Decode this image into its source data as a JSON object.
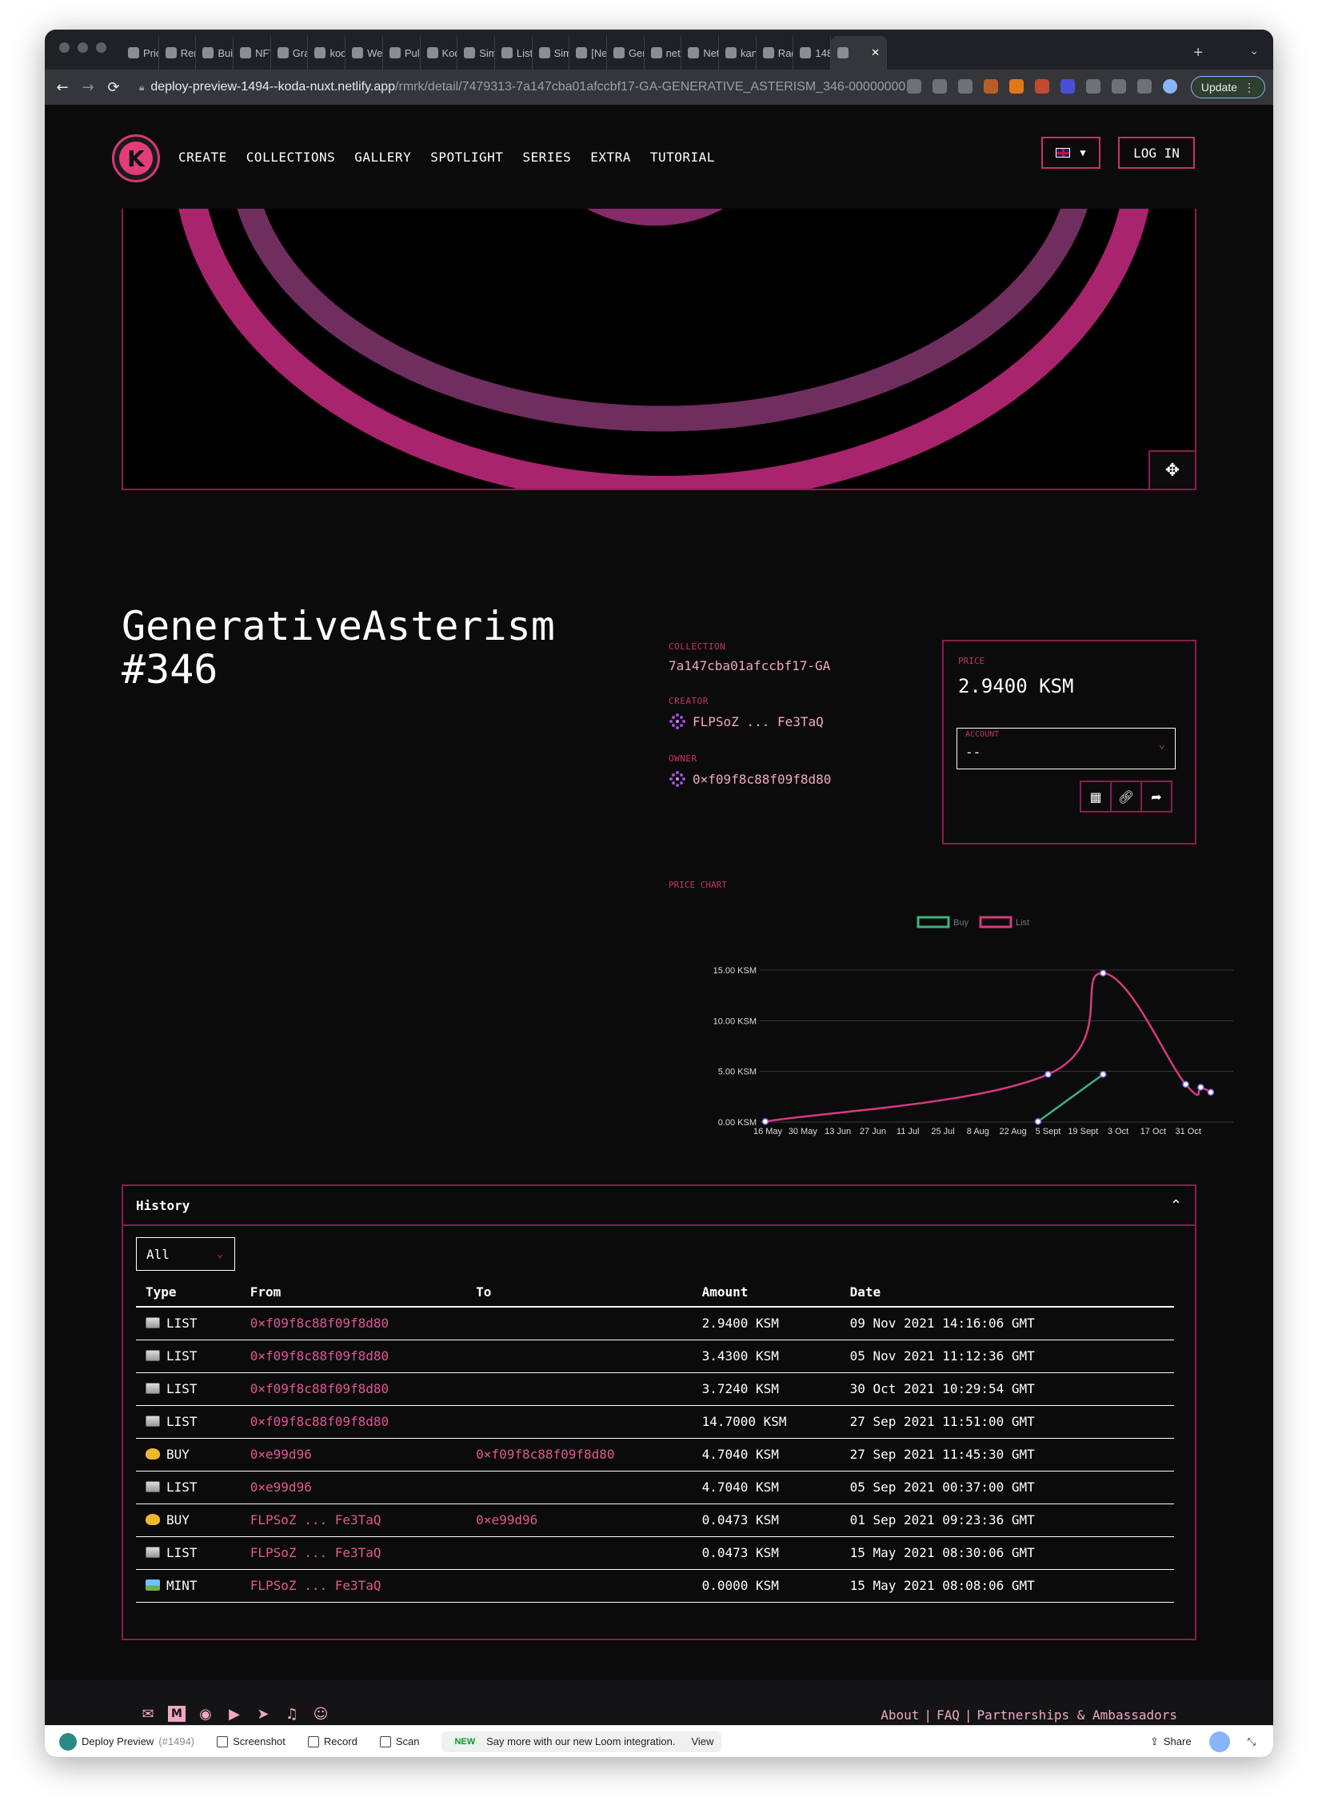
{
  "browser": {
    "tabs": [
      "Pric",
      "Rem",
      "Buil",
      "NFT",
      "Gra",
      "kod",
      "Wer",
      "Pull",
      "Kod",
      "Sim",
      "List",
      "Sim",
      "[Ne",
      "Gen",
      "netl",
      "Netl",
      "kan",
      "Rad",
      "148",
      ""
    ],
    "url_host": "deploy-preview-1494--koda-nuxt.netlify.app",
    "url_path": "/rmrk/detail/7479313-7a147cba01afccbf17-GA-GENERATIVE_ASTERISM_346-00000000...",
    "update_label": "Update",
    "new_tab_symbol": "+"
  },
  "nav": {
    "logo_letter": "K",
    "items": [
      "CREATE",
      "COLLECTIONS",
      "GALLERY",
      "SPOTLIGHT",
      "SERIES",
      "EXTRA",
      "TUTORIAL"
    ],
    "login_label": "LOG IN"
  },
  "nft": {
    "title_line1": "GenerativeAsterism",
    "title_line2": "#346",
    "collection_label": "COLLECTION",
    "collection": "7a147cba01afccbf17-GA",
    "creator_label": "CREATOR",
    "creator": "FLPSoZ ... Fe3TaQ",
    "owner_label": "OWNER",
    "owner": "0×f09f8c88f09f8d80"
  },
  "price": {
    "label": "PRICE",
    "value": "2.9400 KSM",
    "account_label": "ACCOUNT",
    "account_value": "--"
  },
  "chart_data": {
    "type": "line",
    "title": "PRICE CHART",
    "legend": [
      "Buy",
      "List"
    ],
    "legend_position": "top-center",
    "ylabel": "",
    "xlabel": "",
    "y_ticks": [
      "0.00 KSM",
      "5.00 KSM",
      "10.00 KSM",
      "15.00 KSM"
    ],
    "ylim": [
      0,
      15
    ],
    "x_ticks": [
      "16 May",
      "30 May",
      "13 Jun",
      "27 Jun",
      "11 Jul",
      "25 Jul",
      "8 Aug",
      "22 Aug",
      "5 Sept",
      "19 Sept",
      "3 Oct",
      "17 Oct",
      "31 Oct"
    ],
    "series": [
      {
        "name": "Buy",
        "color": "#3fb27f",
        "x": [
          "2021-09-01",
          "2021-09-27"
        ],
        "values": [
          0.0473,
          4.704
        ]
      },
      {
        "name": "List",
        "color": "#d63a80",
        "x": [
          "2021-05-15",
          "2021-09-05",
          "2021-09-27",
          "2021-10-30",
          "2021-11-05",
          "2021-11-09"
        ],
        "values": [
          0.0473,
          4.704,
          14.7,
          3.724,
          3.43,
          2.94
        ]
      }
    ],
    "grid": true
  },
  "history": {
    "title": "History",
    "filter": "All",
    "columns": [
      "Type",
      "From",
      "To",
      "Amount",
      "Date"
    ],
    "rows": [
      {
        "type": "LIST",
        "icon": "list",
        "from": "0×f09f8c88f09f8d80",
        "to": "",
        "amount": "2.9400 KSM",
        "date": "09 Nov 2021 14:16:06 GMT"
      },
      {
        "type": "LIST",
        "icon": "list",
        "from": "0×f09f8c88f09f8d80",
        "to": "",
        "amount": "3.4300 KSM",
        "date": "05 Nov 2021 11:12:36 GMT"
      },
      {
        "type": "LIST",
        "icon": "list",
        "from": "0×f09f8c88f09f8d80",
        "to": "",
        "amount": "3.7240 KSM",
        "date": "30 Oct 2021 10:29:54 GMT"
      },
      {
        "type": "LIST",
        "icon": "list",
        "from": "0×f09f8c88f09f8d80",
        "to": "",
        "amount": "14.7000 KSM",
        "date": "27 Sep 2021 11:51:00 GMT"
      },
      {
        "type": "BUY",
        "icon": "buy",
        "from": "0×e99d96",
        "to": "0×f09f8c88f09f8d80",
        "amount": "4.7040 KSM",
        "date": "27 Sep 2021 11:45:30 GMT"
      },
      {
        "type": "LIST",
        "icon": "list",
        "from": "0×e99d96",
        "to": "",
        "amount": "4.7040 KSM",
        "date": "05 Sep 2021 00:37:00 GMT"
      },
      {
        "type": "BUY",
        "icon": "buy",
        "from": "FLPSoZ ... Fe3TaQ",
        "to": "0×e99d96",
        "amount": "0.0473 KSM",
        "date": "01 Sep 2021 09:23:36 GMT"
      },
      {
        "type": "LIST",
        "icon": "list",
        "from": "FLPSoZ ... Fe3TaQ",
        "to": "",
        "amount": "0.0473 KSM",
        "date": "15 May 2021 08:30:06 GMT"
      },
      {
        "type": "MINT",
        "icon": "mint",
        "from": "FLPSoZ ... Fe3TaQ",
        "to": "",
        "amount": "0.0000 KSM",
        "date": "15 May 2021 08:08:06 GMT"
      }
    ]
  },
  "footer": {
    "links": [
      "About",
      "FAQ",
      "Partnerships & Ambassadors"
    ],
    "separator": "|",
    "icons": [
      "email-icon",
      "medium-icon",
      "discord-icon",
      "youtube-icon",
      "telegram-icon",
      "twitter-icon",
      "reddit-icon"
    ]
  },
  "loom": {
    "preview_label": "Deploy Preview",
    "preview_number": "(#1494)",
    "screenshot": "Screenshot",
    "record": "Record",
    "scan": "Scan",
    "new_badge": "NEW",
    "promo": "Say more with our new Loom integration.",
    "view": "View",
    "share": "Share"
  },
  "colors": {
    "accent": "#c6336b",
    "pink_text": "#f0a7c4",
    "buy_green": "#3fb27f",
    "list_pink": "#d63a80"
  }
}
